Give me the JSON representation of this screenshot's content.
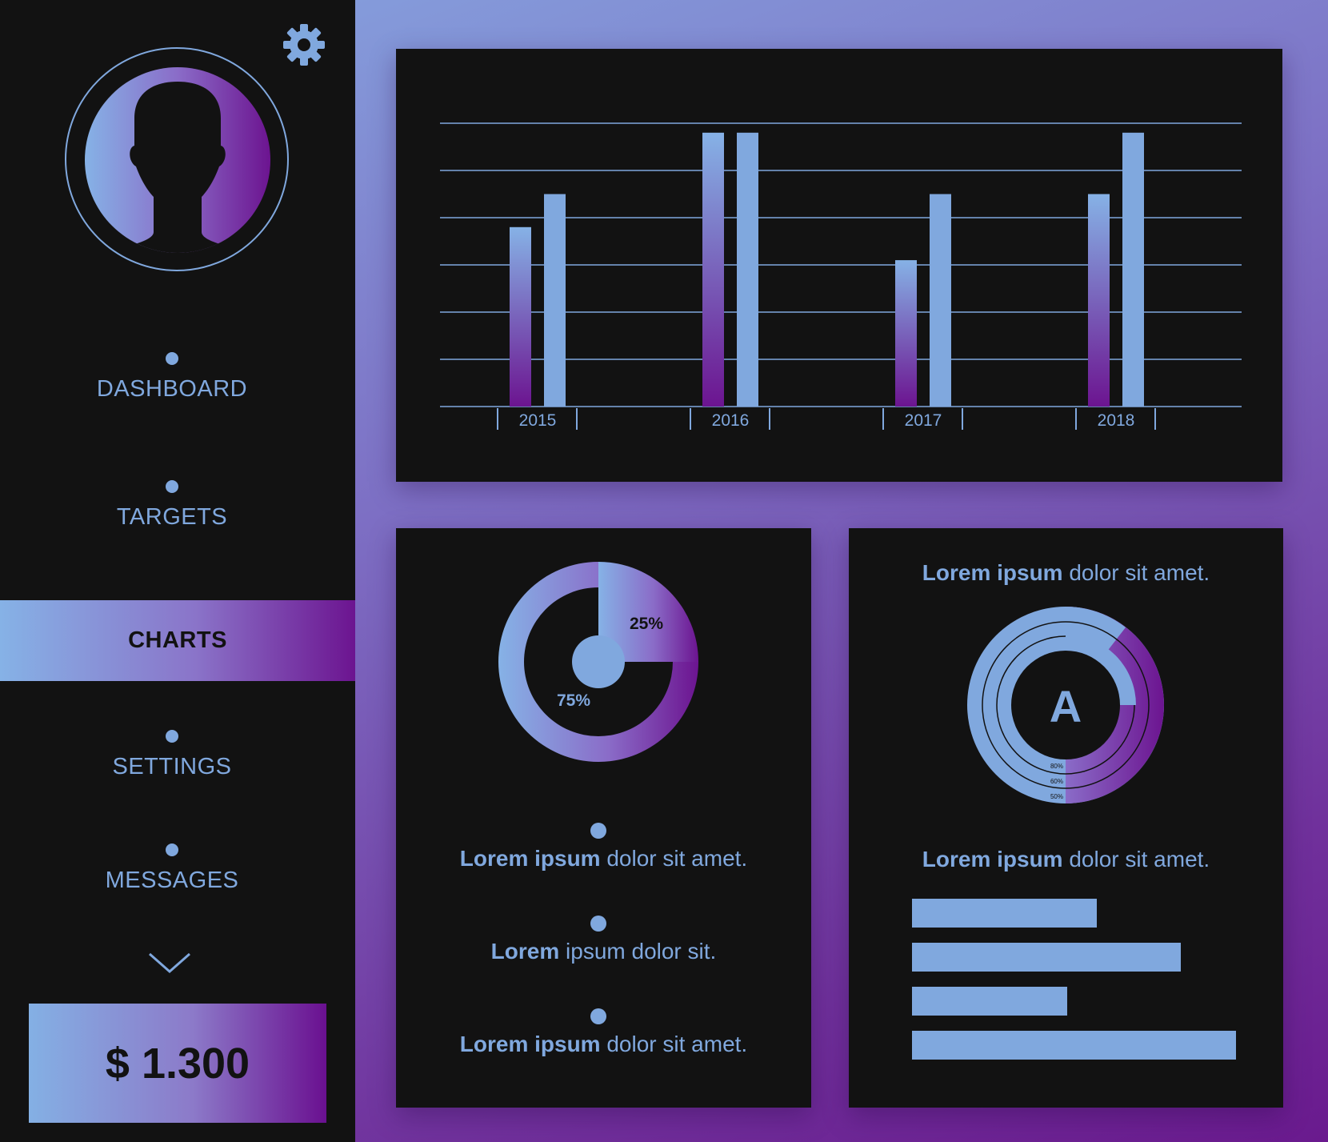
{
  "colors": {
    "accent": "#80a8de",
    "purple": "#6c1490",
    "panel": "#121212"
  },
  "sidebar": {
    "settings_icon": "gear-icon",
    "avatar_icon": "user-silhouette-icon",
    "nav": [
      {
        "label": "DASHBOARD",
        "active": false
      },
      {
        "label": "TARGETS",
        "active": false
      },
      {
        "label": "CHARTS",
        "active": true
      },
      {
        "label": "SETTINGS",
        "active": false
      },
      {
        "label": "MESSAGES",
        "active": false
      }
    ],
    "more_icon": "chevron-down-icon",
    "balance": "$ 1.300"
  },
  "chart_data": [
    {
      "type": "bar",
      "categories": [
        "2015",
        "2016",
        "2017",
        "2018"
      ],
      "series": [
        {
          "values": [
            3.8,
            5.8,
            3.1,
            4.5
          ]
        },
        {
          "values": [
            4.5,
            5.8,
            4.5,
            5.8
          ]
        }
      ],
      "ylim": [
        0,
        6
      ],
      "grid": true
    },
    {
      "type": "pie",
      "labels": [
        "25%",
        "75%"
      ],
      "values": [
        25,
        75
      ]
    },
    {
      "type": "bar",
      "subtype": "radial",
      "center_label": "A",
      "rings": [
        {
          "label": "80%",
          "value": 80
        },
        {
          "label": "60%",
          "value": 60
        },
        {
          "label": "50%",
          "value": 50
        }
      ]
    },
    {
      "type": "bar",
      "orientation": "horizontal",
      "values": [
        0.57,
        0.83,
        0.48,
        1.0
      ]
    }
  ],
  "donut_panel": {
    "items": [
      {
        "bold": "Lorem ipsum",
        "rest": " dolor sit amet."
      },
      {
        "bold": "Lorem",
        "rest": " ipsum dolor sit."
      },
      {
        "bold": "Lorem ipsum",
        "rest": " dolor sit amet."
      }
    ]
  },
  "radial_panel": {
    "top_text": {
      "bold": "Lorem ipsum",
      "rest": " dolor sit amet."
    },
    "bottom_text": {
      "bold": "Lorem ipsum",
      "rest": " dolor sit amet."
    }
  }
}
